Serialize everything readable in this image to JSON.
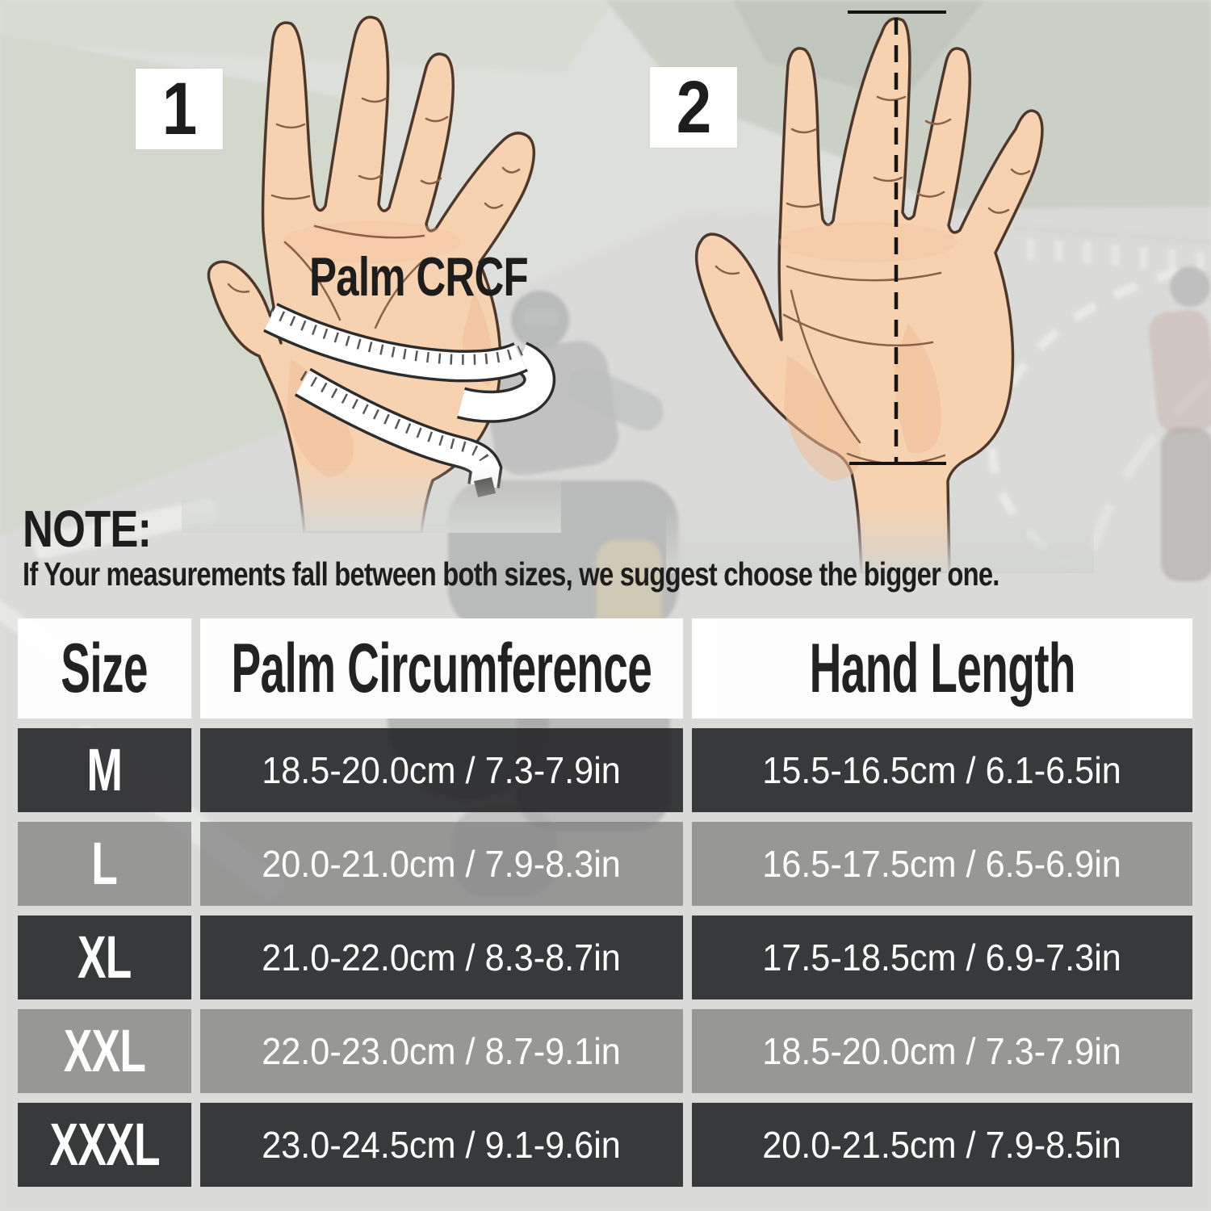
{
  "steps": [
    {
      "number": "1",
      "annotation": "Palm CRCF"
    },
    {
      "number": "2",
      "annotation": ""
    }
  ],
  "note": {
    "title": "NOTE:",
    "text": "If Your measurements fall between both sizes, we suggest choose the bigger one."
  },
  "size_table": {
    "headers": [
      "Size",
      "Palm Circumference",
      "Hand Length"
    ],
    "rows": [
      {
        "size": "M",
        "palm_circumference": "18.5-20.0cm / 7.3-7.9in",
        "hand_length": "15.5-16.5cm / 6.1-6.5in"
      },
      {
        "size": "L",
        "palm_circumference": "20.0-21.0cm / 7.9-8.3in",
        "hand_length": "16.5-17.5cm / 6.5-6.9in"
      },
      {
        "size": "XL",
        "palm_circumference": "21.0-22.0cm / 8.3-8.7in",
        "hand_length": "17.5-18.5cm / 6.9-7.3in"
      },
      {
        "size": "XXL",
        "palm_circumference": "22.0-23.0cm / 8.7-9.1in",
        "hand_length": "18.5-20.0cm / 7.3-7.9in"
      },
      {
        "size": "XXXL",
        "palm_circumference": "23.0-24.5cm / 9.1-9.6in",
        "hand_length": "20.0-21.5cm / 7.9-8.5in"
      }
    ]
  },
  "colors": {
    "row_dark": "#232326",
    "row_gray": "#8a8a8a",
    "header_bg": "#ffffff",
    "row_text": "#ffffff",
    "heading_text": "#1d1d1d",
    "skin": "#f7d2b1",
    "skin_shade": "#f0bd97",
    "hand_outline": "#4e372b"
  }
}
